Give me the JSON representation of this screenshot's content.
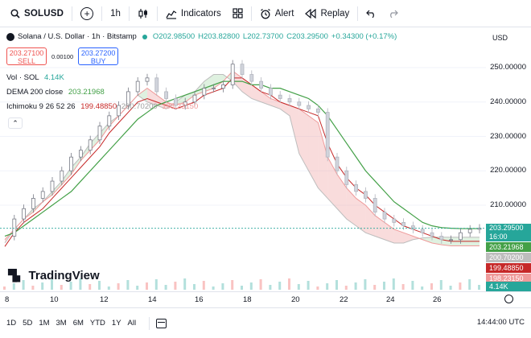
{
  "toolbar": {
    "symbol": "SOLUSD",
    "interval": "1h",
    "indicators_label": "Indicators",
    "alert_label": "Alert",
    "replay_label": "Replay"
  },
  "legend": {
    "title": "Solana / U.S. Dollar · 1h · Bitstamp",
    "open": "O202.98500",
    "high": "H203.82800",
    "low": "L202.73700",
    "close": "C203.29500",
    "change": "+0.34300 (+0.17%)"
  },
  "trade": {
    "sell_price": "203.27100",
    "sell_label": "SELL",
    "spread": "0.00100",
    "buy_price": "203.27200",
    "buy_label": "BUY"
  },
  "indicators": {
    "vol_label": "Vol · SOL",
    "vol_value": "4.14K",
    "dema_label": "DEMA 200 close",
    "dema_value": "203.21968",
    "ichimoku_label": "Ichimoku 9 26 52 26",
    "ich_v1": "199.48850",
    "ich_v2": "200.70200",
    "ich_v3": "198.23150"
  },
  "currency": "USD",
  "price_axis": {
    "ticks": [
      "250.00000",
      "240.00000",
      "230.00000",
      "220.00000",
      "210.00000"
    ]
  },
  "price_tags": {
    "last_price": "203.29500",
    "countdown": "16:00",
    "dema": "203.21968",
    "ich_lagging": "200.70200",
    "ich_base": "199.48850",
    "ich_conv": "198.23150",
    "volume": "4.14K"
  },
  "time_axis": {
    "ticks": [
      "8",
      "10",
      "12",
      "14",
      "16",
      "18",
      "20",
      "22",
      "24",
      "26"
    ]
  },
  "bottom": {
    "ranges": [
      "1D",
      "5D",
      "1M",
      "3M",
      "6M",
      "YTD",
      "1Y",
      "All"
    ],
    "clock": "14:44:00 UTC"
  },
  "watermark": "TradingView",
  "colors": {
    "up": "#26a69a",
    "down": "#ef5350",
    "dema": "#43a047",
    "ich_base": "#c62828",
    "ich_lagging": "#9e9e9e",
    "buy": "#2962ff"
  },
  "chart_data": {
    "type": "line",
    "ylim": [
      195,
      255
    ],
    "x": [
      0,
      1,
      2,
      3,
      4,
      5,
      6,
      7,
      8,
      9,
      10,
      11,
      12,
      13,
      14,
      15,
      16,
      17,
      18,
      19,
      20,
      21,
      22,
      23,
      24,
      25,
      26,
      27,
      28,
      29,
      30,
      31,
      32,
      33,
      34,
      35,
      36,
      37,
      38,
      39,
      40,
      41,
      42,
      43,
      44,
      45,
      46,
      47,
      48,
      49,
      50
    ],
    "series": [
      {
        "name": "SOLUSD",
        "values": [
          201,
          206,
          209,
          212,
          214,
          217,
          220,
          224,
          226,
          229,
          233,
          236,
          239,
          243,
          246,
          247,
          243,
          241,
          239,
          240,
          242,
          244,
          244,
          245,
          251,
          248,
          246,
          244,
          242,
          241,
          240,
          239,
          238,
          237,
          224,
          220,
          216,
          214,
          212,
          208,
          206,
          205,
          204,
          203,
          202,
          201,
          200,
          200,
          202,
          203,
          203.3
        ]
      },
      {
        "name": "DEMA 200 close",
        "values": [
          201,
          202,
          204,
          206,
          208,
          210,
          212,
          214,
          217,
          220,
          223,
          226,
          229,
          232,
          235,
          237,
          239,
          240,
          241,
          242,
          243,
          244,
          245,
          246,
          246,
          246,
          245,
          245,
          244,
          244,
          243,
          242,
          241,
          239,
          236,
          232,
          228,
          224,
          220,
          217,
          214,
          211,
          209,
          207,
          205,
          204,
          203.5,
          203.3,
          203.2,
          203.2,
          203.2
        ]
      },
      {
        "name": "Ichimoku base",
        "values": [
          198,
          202,
          205,
          207,
          209,
          212,
          215,
          218,
          221,
          224,
          227,
          231,
          234,
          237,
          240,
          241,
          240,
          239,
          238,
          239,
          240,
          242,
          243,
          244,
          247,
          247,
          245,
          243,
          242,
          240,
          239,
          238,
          237,
          236,
          228,
          222,
          218,
          215,
          213,
          210,
          208,
          206,
          204,
          203,
          202,
          201,
          200,
          199.5,
          199.5,
          199.5,
          199.5
        ]
      },
      {
        "name": "Ichimoku lagging",
        "values": [
          199,
          203,
          206,
          209,
          211,
          214,
          217,
          221,
          224,
          228,
          231,
          234,
          236,
          239,
          242,
          240,
          239,
          238,
          240,
          242,
          243,
          246,
          248,
          248,
          246,
          243,
          241,
          240,
          239,
          238,
          236,
          225,
          220,
          215,
          212,
          209,
          206,
          204,
          202,
          201,
          200,
          199,
          199,
          200,
          200.5,
          200.7,
          200.7,
          200.7,
          200.7,
          200.7,
          200.7
        ]
      },
      {
        "name": "Ichimoku conversion",
        "values": [
          200,
          203,
          206,
          208,
          211,
          213,
          216,
          219,
          223,
          226,
          229,
          233,
          236,
          239,
          242,
          244,
          242,
          240,
          239,
          240,
          242,
          243,
          244,
          246,
          249,
          247,
          245,
          243,
          241,
          240,
          239,
          238,
          236,
          234,
          224,
          219,
          215,
          212,
          210,
          207,
          205,
          203,
          202,
          201,
          200,
          199,
          198.5,
          198.2,
          198.2,
          198.2,
          198.2
        ]
      }
    ]
  }
}
